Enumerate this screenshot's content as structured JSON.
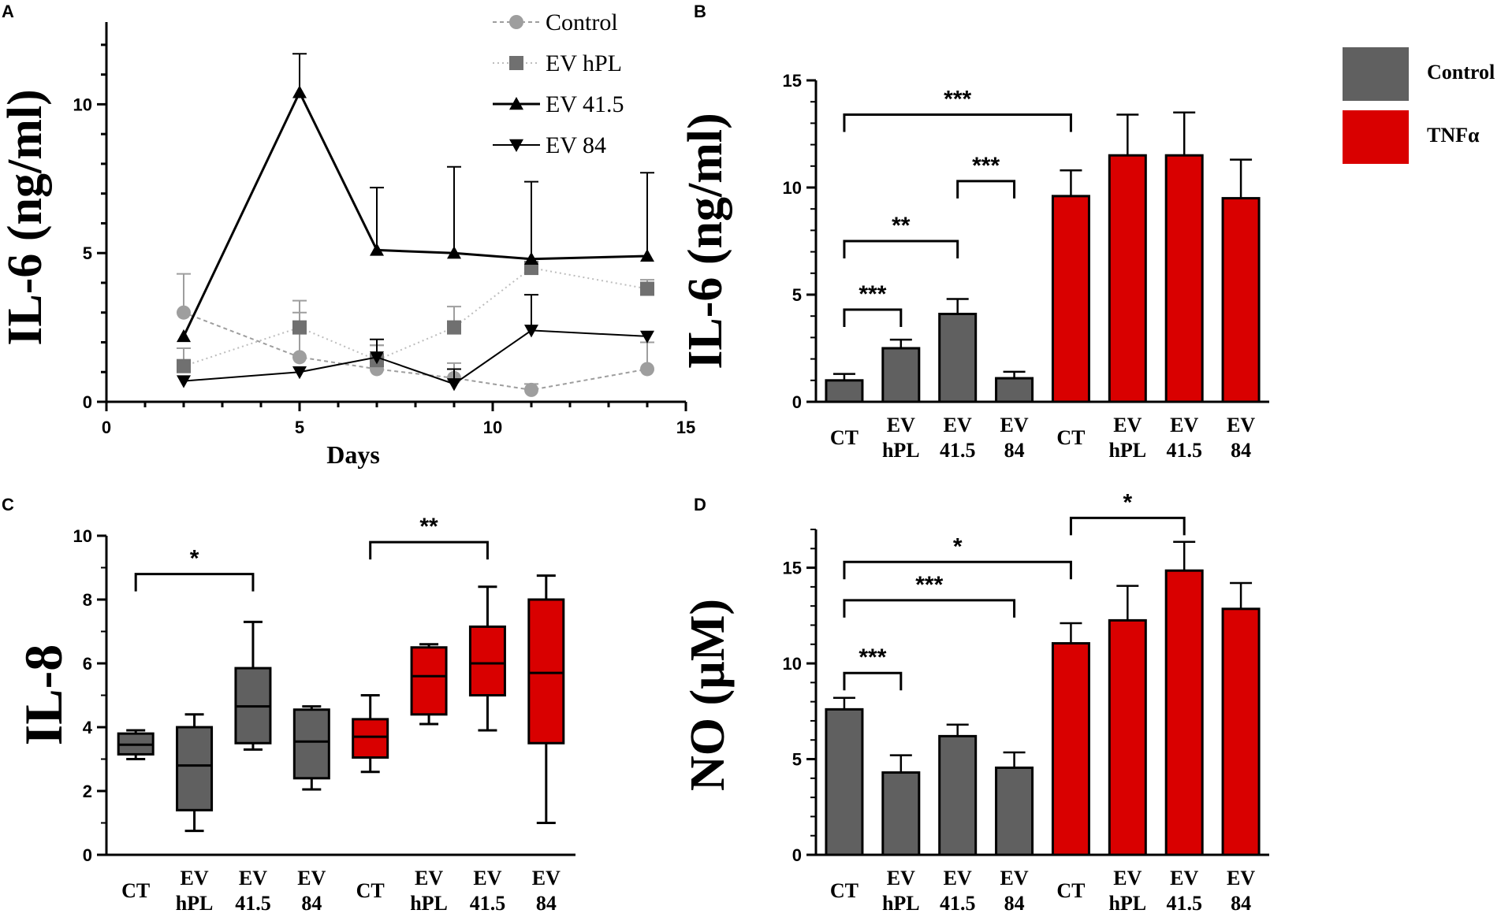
{
  "colors": {
    "control": "#606060",
    "tnf": "#d90000",
    "line_grey": "#9e9e9e",
    "hpl_grey": "#707070"
  },
  "chart_data": [
    {
      "panel": "A",
      "type": "line",
      "xlabel": "Days",
      "ylabel": "IL-6 (ng/ml)",
      "xlim": [
        0,
        15
      ],
      "ylim": [
        0,
        12.5
      ],
      "xticks": [
        "0",
        "5",
        "10",
        "15"
      ],
      "yticks": [
        "0",
        "5",
        "10"
      ],
      "x": [
        2,
        5,
        7,
        9,
        11,
        14
      ],
      "legend_position": "top-right",
      "series": [
        {
          "name": "Control",
          "marker": "circle",
          "values": [
            3.0,
            1.5,
            1.1,
            0.8,
            0.4,
            1.1
          ],
          "err": [
            1.3,
            1.5,
            0.8,
            0.5,
            0.2,
            0.9
          ]
        },
        {
          "name": "EV hPL",
          "marker": "square",
          "values": [
            1.2,
            2.5,
            1.4,
            2.5,
            4.5,
            3.8
          ],
          "err": [
            0.6,
            0.9,
            0.5,
            0.7,
            0.3,
            0.3
          ]
        },
        {
          "name": "EV 41.5",
          "marker": "triangle-up",
          "values": [
            2.2,
            10.4,
            5.1,
            5.0,
            4.8,
            4.9
          ],
          "err": [
            0.0,
            1.3,
            2.1,
            2.9,
            2.6,
            2.8
          ]
        },
        {
          "name": "EV 84",
          "marker": "triangle-down",
          "values": [
            0.7,
            1.0,
            1.5,
            0.6,
            2.4,
            2.2
          ],
          "err": [
            0.0,
            0.0,
            0.6,
            0.5,
            1.2,
            0.0
          ]
        }
      ]
    },
    {
      "panel": "B",
      "type": "bar",
      "ylabel": "IL-6 (ng/ml)",
      "ylim": [
        0,
        15
      ],
      "yticks": [
        "0",
        "5",
        "10",
        "15"
      ],
      "categories": [
        "CT",
        "EV hPL",
        "EV 41.5",
        "EV 84",
        "CT",
        "EV hPL",
        "EV 41.5",
        "EV 84"
      ],
      "values": [
        1.0,
        2.5,
        4.1,
        1.1,
        9.6,
        11.5,
        11.5,
        9.5
      ],
      "err": [
        0.3,
        0.4,
        0.7,
        0.3,
        1.2,
        1.9,
        2.0,
        1.8
      ],
      "groups": [
        "control",
        "control",
        "control",
        "control",
        "tnf",
        "tnf",
        "tnf",
        "tnf"
      ],
      "legend": [
        {
          "label": "Control",
          "group": "control"
        },
        {
          "label": "TNFα",
          "group": "tnf"
        }
      ],
      "significance": [
        {
          "from": 0,
          "to": 4,
          "label": "***",
          "y": 13.4
        },
        {
          "from": 2,
          "to": 3,
          "label": "***",
          "y": 10.3
        },
        {
          "from": 0,
          "to": 2,
          "label": "**",
          "y": 7.5
        },
        {
          "from": 0,
          "to": 1,
          "label": "***",
          "y": 4.3
        }
      ]
    },
    {
      "panel": "C",
      "type": "box",
      "ylabel": "IL-8",
      "ylim": [
        0,
        10
      ],
      "yticks": [
        "0",
        "2",
        "4",
        "6",
        "8",
        "10"
      ],
      "categories": [
        "CT",
        "EV hPL",
        "EV 41.5",
        "EV 84",
        "CT",
        "EV hPL",
        "EV 41.5",
        "EV 84"
      ],
      "groups": [
        "control",
        "control",
        "control",
        "control",
        "tnf",
        "tnf",
        "tnf",
        "tnf"
      ],
      "boxes": [
        {
          "min": 3.0,
          "q1": 3.15,
          "median": 3.45,
          "q3": 3.8,
          "max": 3.9
        },
        {
          "min": 0.75,
          "q1": 1.4,
          "median": 2.8,
          "q3": 4.0,
          "max": 4.4
        },
        {
          "min": 3.3,
          "q1": 3.5,
          "median": 4.65,
          "q3": 5.85,
          "max": 7.3
        },
        {
          "min": 2.05,
          "q1": 2.4,
          "median": 3.55,
          "q3": 4.55,
          "max": 4.65
        },
        {
          "min": 2.6,
          "q1": 3.05,
          "median": 3.7,
          "q3": 4.25,
          "max": 5.0
        },
        {
          "min": 4.1,
          "q1": 4.4,
          "median": 5.6,
          "q3": 6.5,
          "max": 6.6
        },
        {
          "min": 3.9,
          "q1": 5.0,
          "median": 6.0,
          "q3": 7.15,
          "max": 8.4
        },
        {
          "min": 1.0,
          "q1": 3.5,
          "median": 5.7,
          "q3": 8.0,
          "max": 8.75
        }
      ],
      "significance": [
        {
          "from": 0,
          "to": 2,
          "label": "*",
          "y": 8.8
        },
        {
          "from": 4,
          "to": 6,
          "label": "**",
          "y": 9.8
        }
      ]
    },
    {
      "panel": "D",
      "type": "bar",
      "ylabel": "NO (µM)",
      "ylim": [
        0,
        17
      ],
      "yticks": [
        "0",
        "5",
        "10",
        "15"
      ],
      "categories": [
        "CT",
        "EV hPL",
        "EV 41.5",
        "EV 84",
        "CT",
        "EV hPL",
        "EV 41.5",
        "EV 84"
      ],
      "values": [
        7.6,
        4.3,
        6.2,
        4.55,
        11.05,
        12.25,
        14.85,
        12.85
      ],
      "err": [
        0.6,
        0.9,
        0.6,
        0.8,
        1.05,
        1.8,
        1.5,
        1.35
      ],
      "groups": [
        "control",
        "control",
        "control",
        "control",
        "tnf",
        "tnf",
        "tnf",
        "tnf"
      ],
      "significance": [
        {
          "from": 4,
          "to": 6,
          "label": "*",
          "y": 17.6
        },
        {
          "from": 0,
          "to": 4,
          "label": "*",
          "y": 15.3
        },
        {
          "from": 0,
          "to": 3,
          "label": "***",
          "y": 13.3
        },
        {
          "from": 0,
          "to": 1,
          "label": "***",
          "y": 9.5
        }
      ]
    }
  ]
}
